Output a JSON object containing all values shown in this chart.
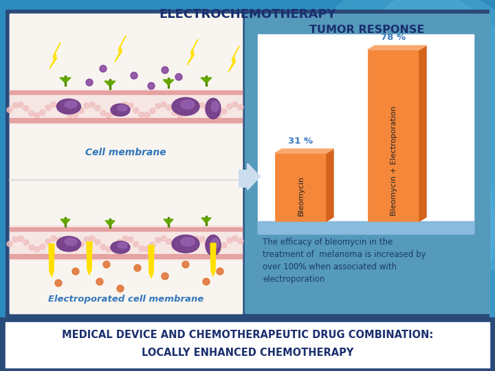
{
  "title": "ELECTROCHEMOTHERAPY",
  "bar_title": "TUMOR RESPONSE",
  "categories": [
    "Bleomycin",
    "Bleomycin + Electroporation"
  ],
  "values": [
    31,
    78
  ],
  "value_labels": [
    "31 %",
    "78 %"
  ],
  "bar_color": "#F4873A",
  "bar_right_face": "#D4621A",
  "bar_top_face": "#F9A870",
  "background_color_outer": "#3399CC",
  "background_color_right_panel": "#55AACC",
  "chart_bg": "#FFFFFF",
  "footer_bg": "#FFFFFF",
  "footer_text_line1": "MEDICAL DEVICE AND CHEMOTHERAPEUTIC DRUG COMBINATION:",
  "footer_text_line2": "LOCALLY ENHANCED CHEMOTHERAPY",
  "footer_text_color": "#1A2F6E",
  "description_text": "The efficacy of bleomycin in the\ntreatment of  melanoma is increased by\nover 100% when associated with\nelectroporation",
  "description_color": "#1A3A6A",
  "title_color": "#1A2F6E",
  "bar_title_color": "#1A2F6E",
  "ylim": [
    0,
    85
  ],
  "value_label_color": "#3A7ABF",
  "chart_blue_strip": "#88BBDD",
  "left_panel_bg": "#FFFFFF",
  "right_panel_border": "#2277AA",
  "overall_bg": "#2E8BBF",
  "swirl_color1": "#4AAAD0",
  "swirl_color2": "#66BBE0"
}
